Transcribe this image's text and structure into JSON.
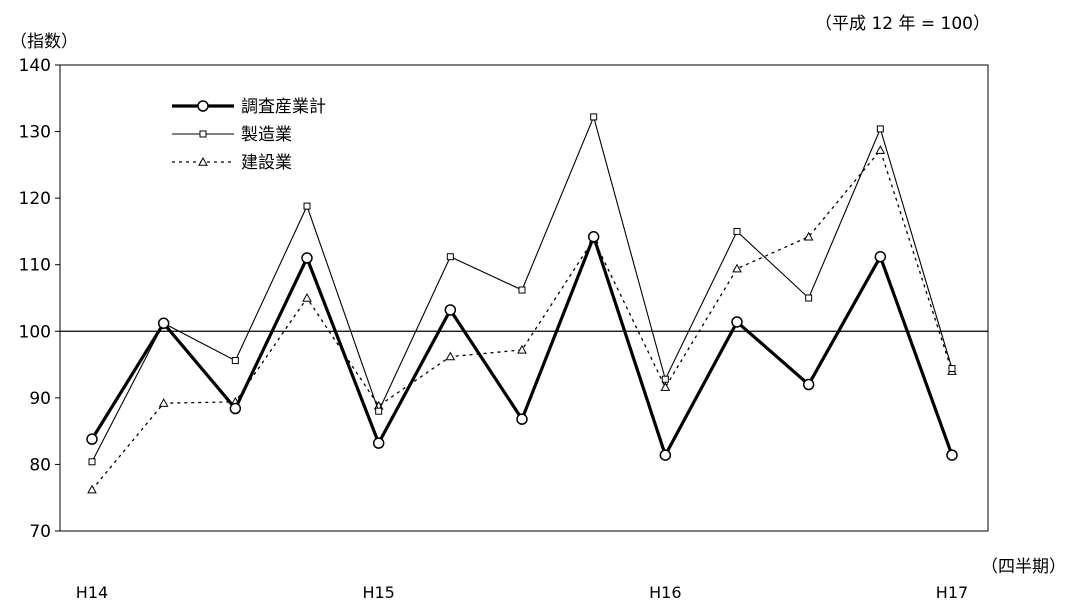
{
  "chart_data": {
    "type": "line",
    "y_axis_title": "（指数）",
    "base_note": "（平成 12 年 = 100）",
    "x_axis_title": "（四半期）",
    "ylim": [
      70,
      140
    ],
    "yticks": [
      70,
      80,
      90,
      100,
      110,
      120,
      130,
      140
    ],
    "reference_line": 100,
    "grid": false,
    "legend_position": "top-left",
    "x_tick_labels": [
      "H14",
      "",
      "",
      "",
      "H15",
      "",
      "",
      "",
      "H16",
      "",
      "",
      "",
      "H17"
    ],
    "series": [
      {
        "name": "調査産業計",
        "style": "thick-solid",
        "marker": "circle",
        "values": [
          83.8,
          101.2,
          88.4,
          111.0,
          83.2,
          103.2,
          86.8,
          114.2,
          81.4,
          101.4,
          92.0,
          111.2,
          81.4
        ]
      },
      {
        "name": "製造業",
        "style": "thin-solid",
        "marker": "square",
        "values": [
          80.4,
          101.2,
          95.6,
          118.8,
          88.0,
          111.2,
          106.2,
          132.2,
          92.8,
          115.0,
          105.0,
          130.4,
          94.4
        ]
      },
      {
        "name": "建設業",
        "style": "dotted",
        "marker": "triangle",
        "values": [
          76.2,
          89.2,
          89.4,
          105.0,
          88.8,
          96.2,
          97.2,
          113.8,
          91.6,
          109.4,
          114.2,
          127.2,
          94.0
        ]
      }
    ]
  }
}
